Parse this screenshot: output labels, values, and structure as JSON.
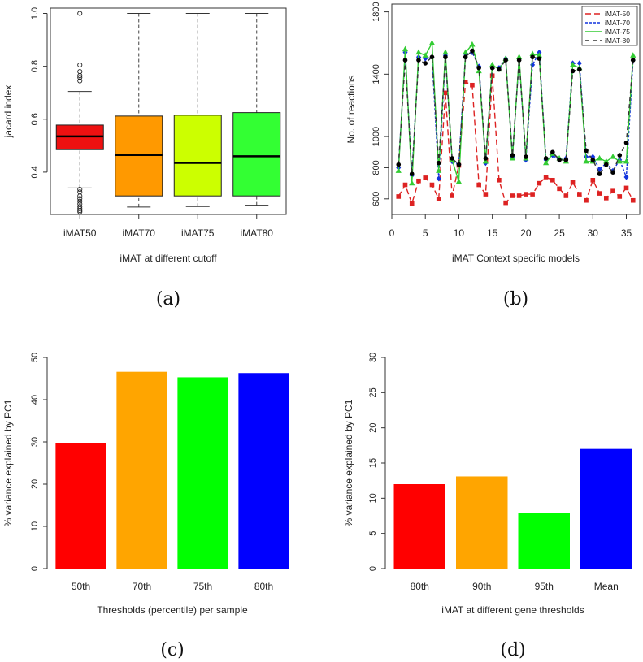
{
  "chart_data": [
    {
      "id": "a",
      "panel_label": "(a)",
      "type": "box",
      "xlabel": "iMAT at different cutoff",
      "ylabel": "jacard index",
      "ylim": [
        0.24,
        1.02
      ],
      "yticks": [
        0.4,
        0.6,
        0.8,
        1.0
      ],
      "ytick_labels": [
        "0.4",
        "0.6",
        "0.8",
        "1.0"
      ],
      "categories": [
        "iMAT50",
        "iMAT70",
        "iMAT75",
        "iMAT80"
      ],
      "colors": [
        "#ee1111",
        "#ff9900",
        "#ccff00",
        "#33ff33"
      ],
      "boxes": [
        {
          "min": 0.34,
          "q1": 0.485,
          "median": 0.535,
          "q3": 0.578,
          "max": 0.705,
          "outliers": [
            1.0,
            0.805,
            0.78,
            0.765,
            0.758,
            0.745,
            0.335,
            0.325,
            0.31,
            0.3,
            0.29,
            0.28,
            0.27,
            0.262,
            0.255,
            0.25
          ]
        },
        {
          "min": 0.268,
          "q1": 0.31,
          "median": 0.465,
          "q3": 0.612,
          "max": 1.0,
          "outliers": []
        },
        {
          "min": 0.27,
          "q1": 0.31,
          "median": 0.435,
          "q3": 0.615,
          "max": 1.0,
          "outliers": []
        },
        {
          "min": 0.275,
          "q1": 0.31,
          "median": 0.46,
          "q3": 0.625,
          "max": 1.0,
          "outliers": []
        }
      ]
    },
    {
      "id": "b",
      "panel_label": "(b)",
      "type": "line",
      "xlabel": "iMAT Context specific models",
      "ylabel": "No. of reactions",
      "xlim": [
        0,
        37
      ],
      "ylim": [
        500,
        1850
      ],
      "xticks": [
        0,
        5,
        10,
        15,
        20,
        25,
        30,
        35
      ],
      "yticks": [
        600,
        800,
        1000,
        1400,
        1800
      ],
      "x": [
        1,
        2,
        3,
        4,
        5,
        6,
        7,
        8,
        9,
        10,
        11,
        12,
        13,
        14,
        15,
        16,
        17,
        18,
        19,
        20,
        21,
        22,
        23,
        24,
        25,
        26,
        27,
        28,
        29,
        30,
        31,
        32,
        33,
        34,
        35,
        36
      ],
      "series": [
        {
          "name": "iMAT-50",
          "color": "#dd2222",
          "dash": "7,4",
          "marker_color": "#dd2222",
          "values": [
            615,
            690,
            570,
            715,
            735,
            690,
            600,
            1280,
            620,
            815,
            1350,
            1330,
            690,
            630,
            1390,
            720,
            575,
            620,
            620,
            630,
            630,
            700,
            740,
            720,
            665,
            620,
            705,
            630,
            590,
            720,
            635,
            605,
            650,
            615,
            670,
            590
          ]
        },
        {
          "name": "iMAT-70",
          "color": "#1133dd",
          "dash": "3,2",
          "marker_color": "#1133dd",
          "values": [
            800,
            1540,
            750,
            1510,
            1500,
            1510,
            730,
            1520,
            840,
            820,
            1530,
            1540,
            1450,
            830,
            1450,
            1440,
            1500,
            870,
            1500,
            850,
            1460,
            1540,
            850,
            880,
            850,
            860,
            1470,
            1470,
            870,
            870,
            790,
            830,
            780,
            850,
            740,
            1490
          ]
        },
        {
          "name": "iMAT-75",
          "color": "#33cc33",
          "dash": "",
          "marker_color": "#33cc33",
          "values": [
            780,
            1560,
            700,
            1540,
            1520,
            1600,
            780,
            1540,
            850,
            710,
            1540,
            1590,
            1420,
            840,
            1460,
            1430,
            1500,
            860,
            1510,
            860,
            1530,
            1520,
            830,
            890,
            860,
            840,
            1460,
            1440,
            840,
            840,
            860,
            840,
            870,
            840,
            840,
            1520
          ]
        },
        {
          "name": "iMAT-80",
          "color": "#333333",
          "dash": "5,4",
          "marker_color": "#000000",
          "values": [
            820,
            1490,
            760,
            1490,
            1470,
            1510,
            830,
            1510,
            860,
            820,
            1510,
            1550,
            1440,
            860,
            1440,
            1430,
            1490,
            880,
            1490,
            870,
            1510,
            1500,
            860,
            900,
            850,
            850,
            1420,
            1430,
            910,
            850,
            760,
            820,
            770,
            880,
            960,
            1490
          ]
        }
      ]
    },
    {
      "id": "c",
      "panel_label": "(c)",
      "type": "bar",
      "xlabel": "Thresholds (percentile) per sample",
      "ylabel": "% variance explained by PC1",
      "ylim": [
        0,
        50
      ],
      "yticks": [
        0,
        10,
        20,
        30,
        40,
        50
      ],
      "categories": [
        "50th",
        "70th",
        "75th",
        "80th"
      ],
      "values": [
        29.7,
        46.6,
        45.3,
        46.3
      ],
      "colors": [
        "#ff0000",
        "#ffa500",
        "#00ff00",
        "#0000ff"
      ]
    },
    {
      "id": "d",
      "panel_label": "(d)",
      "type": "bar",
      "xlabel": "iMAT at different gene thresholds",
      "ylabel": "% variance explained by PC1",
      "ylim": [
        0,
        30
      ],
      "yticks": [
        0,
        5,
        10,
        15,
        20,
        25,
        30
      ],
      "categories": [
        "80th",
        "90th",
        "95th",
        "Mean"
      ],
      "values": [
        12.0,
        13.1,
        7.9,
        17.0
      ],
      "colors": [
        "#ff0000",
        "#ffa500",
        "#00ff00",
        "#0000ff"
      ]
    }
  ]
}
